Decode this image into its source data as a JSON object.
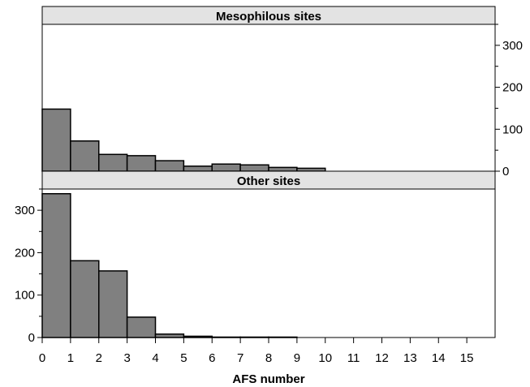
{
  "chart_data": {
    "type": "bar",
    "xlabel": "AFS number",
    "x_ticks": [
      0,
      1,
      2,
      3,
      4,
      5,
      6,
      7,
      8,
      9,
      10,
      11,
      12,
      13,
      14,
      15
    ],
    "bins": [
      0,
      1,
      2,
      3,
      4,
      5,
      6,
      7,
      8,
      9,
      10,
      11,
      12,
      13,
      14,
      15
    ],
    "xlim": [
      0,
      16
    ],
    "grid": false,
    "panels": [
      {
        "title": "Mesophilous sites",
        "y_axis_side": "right",
        "ylim": [
          0,
          350
        ],
        "y_ticks": [
          0,
          100,
          200,
          300
        ],
        "values": [
          148,
          72,
          40,
          37,
          25,
          12,
          17,
          15,
          9,
          7,
          0,
          0,
          0,
          0,
          0,
          0
        ]
      },
      {
        "title": "Other sites",
        "y_axis_side": "left",
        "ylim": [
          0,
          350
        ],
        "y_ticks": [
          0,
          100,
          200,
          300
        ],
        "values": [
          339,
          181,
          157,
          48,
          8,
          3,
          1,
          1,
          1,
          0,
          0,
          0,
          0,
          0,
          0,
          0
        ]
      }
    ],
    "colors": {
      "bar_fill": "#808080",
      "bar_stroke": "#000000",
      "strip_fill": "#e3e3e3"
    }
  }
}
